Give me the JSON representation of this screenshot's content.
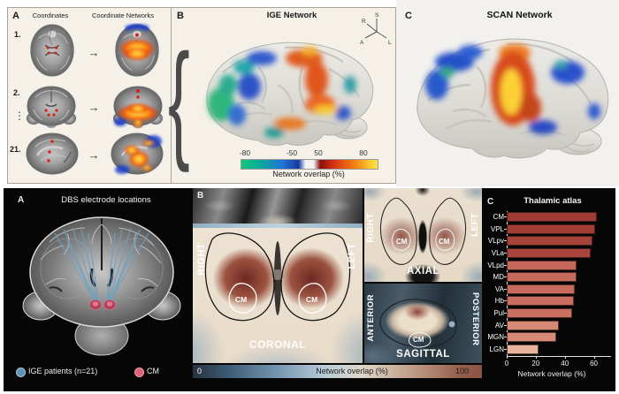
{
  "top": {
    "panel_a": {
      "label": "A",
      "col1": "Coordinates",
      "col2": "Coordinate Networks",
      "row1": "1.",
      "row2": "2.",
      "row3": "21.",
      "ellipsis": "⋮",
      "arrow": "→"
    },
    "panel_b": {
      "label": "B",
      "title": "IGE Network",
      "brace": "{",
      "compass": {
        "s": "S",
        "r": "R",
        "a": "A",
        "l": "L"
      },
      "colorbar": {
        "t0": "-80",
        "t1": "-50",
        "t2": "50",
        "t3": "80",
        "label": "Network overlap (%)"
      }
    },
    "panel_c": {
      "label": "C",
      "title": "SCAN Network"
    }
  },
  "bottom": {
    "panel_a": {
      "label": "A",
      "title": "DBS electrode locations",
      "legend1": {
        "text": "IGE patients (n=21)",
        "color": "#5e93b8"
      },
      "legend2": {
        "text": "CM",
        "color": "#e0607a"
      }
    },
    "panel_b": {
      "label": "B",
      "coronal": {
        "name": "CORONAL",
        "side_left": "RIGHT",
        "side_right": "LEFT",
        "cm_left": "CM",
        "cm_right": "CM"
      },
      "axial": {
        "name": "AXIAL",
        "side_left": "RIGHT",
        "side_right": "LEFT",
        "cm_left": "CM",
        "cm_right": "CM"
      },
      "sagittal": {
        "name": "SAGITTAL",
        "side_left": "ANTERIOR",
        "side_right": "POSTERIOR",
        "cm": "CM"
      },
      "colorbar": {
        "min": "0",
        "max": "100",
        "label": "Network overlap (%)"
      }
    },
    "panel_c": {
      "label": "C"
    }
  },
  "chart_data": {
    "type": "bar",
    "orientation": "horizontal",
    "title": "Thalamic atlas",
    "categories": [
      "CM",
      "VPL",
      "VLpv",
      "VLa",
      "VLpd",
      "MD",
      "VA",
      "Hb",
      "Pul",
      "AV",
      "MGN",
      "LGN"
    ],
    "values": [
      62,
      61,
      59,
      58,
      48,
      48,
      47,
      46,
      45,
      36,
      34,
      22
    ],
    "xlabel": "Network overlap (%)",
    "xlim": [
      0,
      70
    ],
    "xticks": [
      0,
      20,
      40,
      60
    ],
    "bar_colors": [
      "#9e3b34",
      "#a03d36",
      "#a64239",
      "#a9453c",
      "#c5685a",
      "#c66a5b",
      "#c76c5d",
      "#c86e5e",
      "#c97060",
      "#d68974",
      "#d78b76",
      "#eab49c"
    ],
    "legend_position": "none",
    "grid": false
  }
}
